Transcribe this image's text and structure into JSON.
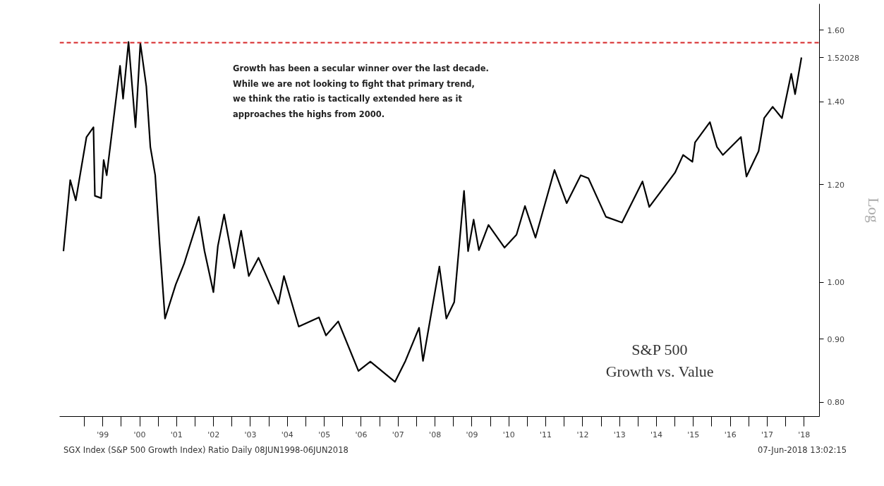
{
  "chart_data": {
    "type": "line",
    "ylabel": "Log",
    "log": "y",
    "xlim": [
      "1998-05-01",
      "2018-12-01"
    ],
    "ylim": [
      0.779,
      1.68
    ],
    "xticks": [
      {
        "value": "1999-01-01",
        "label": null
      },
      {
        "value": "1999-07-02",
        "label": "'99"
      },
      {
        "value": "2000-01-01",
        "label": null
      },
      {
        "value": "2000-07-02",
        "label": "'00"
      },
      {
        "value": "2001-01-01",
        "label": null
      },
      {
        "value": "2001-07-02",
        "label": "'01"
      },
      {
        "value": "2002-01-01",
        "label": null
      },
      {
        "value": "2002-07-02",
        "label": "'02"
      },
      {
        "value": "2003-01-01",
        "label": null
      },
      {
        "value": "2003-07-02",
        "label": "'03"
      },
      {
        "value": "2004-01-01",
        "label": null
      },
      {
        "value": "2004-07-02",
        "label": "'04"
      },
      {
        "value": "2005-01-01",
        "label": null
      },
      {
        "value": "2005-07-02",
        "label": "'05"
      },
      {
        "value": "2006-01-01",
        "label": null
      },
      {
        "value": "2006-07-02",
        "label": "'06"
      },
      {
        "value": "2007-01-01",
        "label": null
      },
      {
        "value": "2007-07-02",
        "label": "'07"
      },
      {
        "value": "2008-01-01",
        "label": null
      },
      {
        "value": "2008-07-02",
        "label": "'08"
      },
      {
        "value": "2009-01-01",
        "label": null
      },
      {
        "value": "2009-07-02",
        "label": "'09"
      },
      {
        "value": "2010-01-01",
        "label": null
      },
      {
        "value": "2010-07-02",
        "label": "'10"
      },
      {
        "value": "2011-01-01",
        "label": null
      },
      {
        "value": "2011-07-02",
        "label": "'11"
      },
      {
        "value": "2012-01-01",
        "label": null
      },
      {
        "value": "2012-07-02",
        "label": "'12"
      },
      {
        "value": "2013-01-01",
        "label": null
      },
      {
        "value": "2013-07-02",
        "label": "'13"
      },
      {
        "value": "2014-01-01",
        "label": null
      },
      {
        "value": "2014-07-02",
        "label": "'14"
      },
      {
        "value": "2015-01-01",
        "label": null
      },
      {
        "value": "2015-07-02",
        "label": "'15"
      },
      {
        "value": "2016-01-01",
        "label": null
      },
      {
        "value": "2016-07-02",
        "label": "'16"
      },
      {
        "value": "2017-01-01",
        "label": null
      },
      {
        "value": "2017-07-02",
        "label": "'17"
      },
      {
        "value": "2018-01-01",
        "label": null
      },
      {
        "value": "2018-07-02",
        "label": "'18"
      }
    ],
    "yticks": [
      {
        "value": 0.8,
        "label": "0.80"
      },
      {
        "value": 0.9,
        "label": "0.90"
      },
      {
        "value": 1.0,
        "label": "1.00"
      },
      {
        "value": 1.2,
        "label": "1.20"
      },
      {
        "value": 1.4,
        "label": "1.40"
      },
      1.52028,
      {
        "value": 1.6,
        "label": "1.60"
      }
    ],
    "x": [
      "1998-06-08",
      "1998-08-14",
      "1998-10-08",
      "1999-01-22",
      "1999-04-01",
      "1999-04-15",
      "1999-06-16",
      "1999-07-11",
      "1999-08-10",
      "1999-12-20",
      "2000-01-19",
      "2000-03-13",
      "2000-05-21",
      "2000-07-08",
      "2000-09-05",
      "2000-10-15",
      "2000-12-02",
      "2001-01-15",
      "2001-03-09",
      "2001-06-23",
      "2001-09-13",
      "2002-02-07",
      "2002-04-04",
      "2002-07-01",
      "2002-08-14",
      "2002-10-15",
      "2003-01-22",
      "2003-04-01",
      "2003-06-16",
      "2003-09-20",
      "2004-04-04",
      "2004-05-29",
      "2004-10-22",
      "2005-05-10",
      "2005-07-19",
      "2005-11-17",
      "2006-06-05",
      "2006-10-01",
      "2007-06-02",
      "2007-09-13",
      "2008-01-26",
      "2008-03-05",
      "2008-08-14",
      "2008-10-22",
      "2009-01-08",
      "2009-04-15",
      "2009-05-25",
      "2009-07-19",
      "2009-09-09",
      "2009-12-13",
      "2010-05-21",
      "2010-09-16",
      "2010-12-09",
      "2011-03-23",
      "2011-09-27",
      "2012-01-26",
      "2012-06-13",
      "2012-08-28",
      "2013-02-17",
      "2013-07-26",
      "2014-02-14",
      "2014-04-22",
      "2015-01-02",
      "2015-03-23",
      "2015-06-23",
      "2015-07-19",
      "2015-12-13",
      "2016-02-21",
      "2016-04-19",
      "2016-10-15",
      "2016-12-09",
      "2017-04-08",
      "2017-06-02",
      "2017-08-25",
      "2017-11-25",
      "2018-02-25",
      "2018-04-04",
      "2018-06-06"
    ],
    "series": [
      {
        "color": "#000000",
        "values": [
          1.06,
          1.21,
          1.165,
          1.311,
          1.335,
          1.175,
          1.17,
          1.256,
          1.221,
          1.497,
          1.408,
          1.565,
          1.335,
          1.561,
          1.441,
          1.287,
          1.221,
          1.074,
          0.935,
          0.996,
          1.035,
          1.13,
          1.06,
          0.982,
          1.07,
          1.135,
          1.027,
          1.101,
          1.012,
          1.047,
          0.961,
          1.012,
          0.921,
          0.937,
          0.906,
          0.93,
          0.848,
          0.863,
          0.831,
          0.864,
          0.919,
          0.864,
          1.03,
          0.935,
          0.964,
          1.186,
          1.06,
          1.124,
          1.062,
          1.113,
          1.067,
          1.093,
          1.153,
          1.087,
          1.233,
          1.159,
          1.221,
          1.214,
          1.13,
          1.118,
          1.207,
          1.151,
          1.227,
          1.268,
          1.252,
          1.298,
          1.348,
          1.287,
          1.268,
          1.311,
          1.218,
          1.277,
          1.358,
          1.387,
          1.358,
          1.475,
          1.42,
          1.52028
        ]
      }
    ],
    "ref_lines": [
      {
        "axis": "y",
        "value": 1.563,
        "color": "#d62728",
        "line_style": "dashed"
      }
    ],
    "annotations": [
      "Growth has been a secular winner over the last decade.\nWhile we are not looking to fight that primary trend,\nwe think the ratio is tactically extended here as it\napproaches the highs from 2000.",
      "S&P 500\nGrowth vs. Value",
      "SGX Index (S&P 500 Growth Index) Ratio  Daily 08JUN1998-06JUN2018",
      "07-Jun-2018 13:02:15"
    ]
  }
}
